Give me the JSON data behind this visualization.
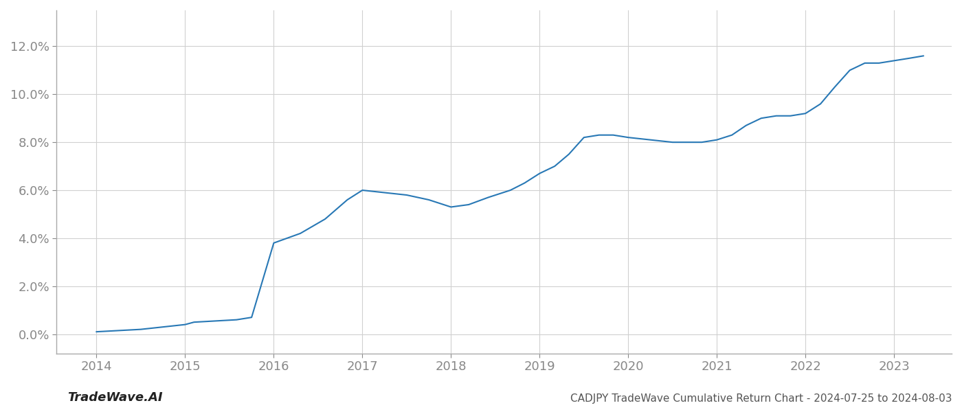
{
  "x_years": [
    2014.0,
    2014.5,
    2015.0,
    2015.1,
    2015.58,
    2015.75,
    2016.0,
    2016.3,
    2016.58,
    2016.83,
    2017.0,
    2017.25,
    2017.5,
    2017.75,
    2018.0,
    2018.2,
    2018.42,
    2018.67,
    2018.83,
    2019.0,
    2019.17,
    2019.33,
    2019.5,
    2019.67,
    2019.83,
    2020.0,
    2020.25,
    2020.5,
    2020.67,
    2020.83,
    2021.0,
    2021.17,
    2021.33,
    2021.5,
    2021.67,
    2021.83,
    2022.0,
    2022.17,
    2022.33,
    2022.5,
    2022.67,
    2022.83,
    2023.0,
    2023.17,
    2023.33
  ],
  "y_values": [
    0.001,
    0.002,
    0.004,
    0.005,
    0.006,
    0.007,
    0.038,
    0.042,
    0.048,
    0.056,
    0.06,
    0.059,
    0.058,
    0.056,
    0.053,
    0.054,
    0.057,
    0.06,
    0.063,
    0.067,
    0.07,
    0.075,
    0.082,
    0.083,
    0.083,
    0.082,
    0.081,
    0.08,
    0.08,
    0.08,
    0.081,
    0.083,
    0.087,
    0.09,
    0.091,
    0.091,
    0.092,
    0.096,
    0.103,
    0.11,
    0.113,
    0.113,
    0.114,
    0.115,
    0.116
  ],
  "line_color": "#2878b5",
  "line_width": 1.5,
  "background_color": "#ffffff",
  "grid_color": "#d0d0d0",
  "tick_color": "#888888",
  "spine_color": "#aaaaaa",
  "title": "CADJPY TradeWave Cumulative Return Chart - 2024-07-25 to 2024-08-03",
  "watermark": "TradeWave.AI",
  "ylim": [
    -0.008,
    0.135
  ],
  "xlim": [
    2013.55,
    2023.65
  ],
  "yticks": [
    0.0,
    0.02,
    0.04,
    0.06,
    0.08,
    0.1,
    0.12
  ],
  "xticks": [
    2014,
    2015,
    2016,
    2017,
    2018,
    2019,
    2020,
    2021,
    2022,
    2023
  ],
  "title_fontsize": 11,
  "tick_fontsize": 13,
  "watermark_fontsize": 13
}
